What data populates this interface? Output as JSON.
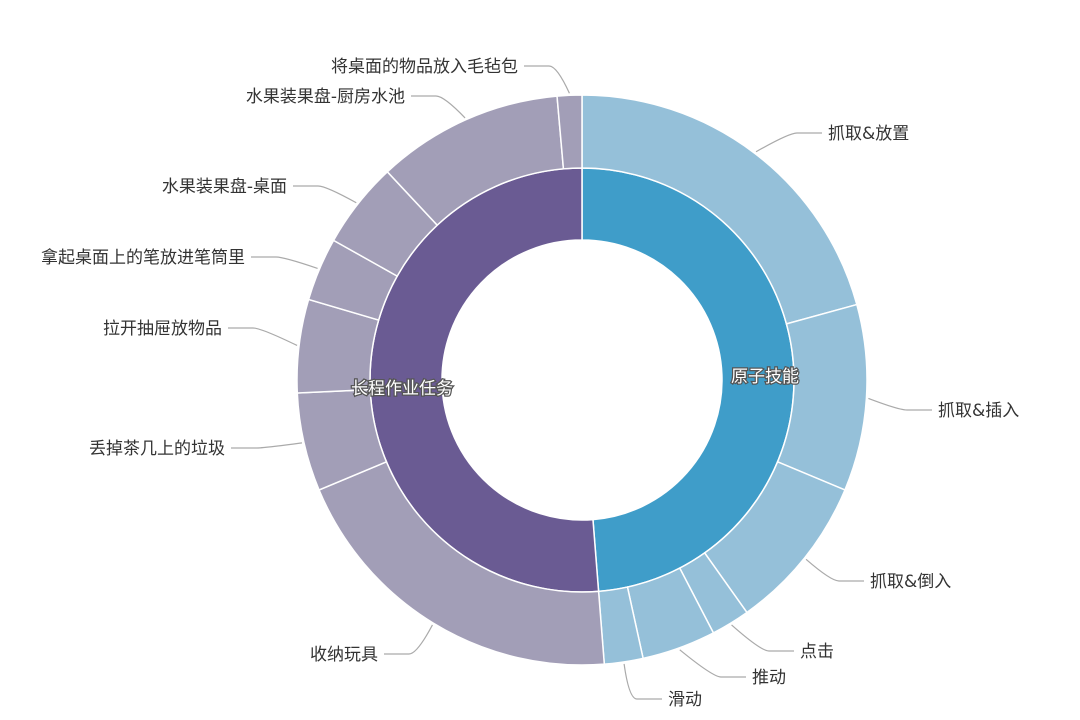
{
  "chart_data": {
    "type": "sunburst",
    "unit": "percent (estimated)",
    "colors": {
      "原子技能_inner": "#3f9dc9",
      "原子技能_outer": "#95c0d9",
      "长程作业任务_inner": "#6a5b93",
      "长程作业任务_outer": "#a29eb7",
      "separator": "#ffffff",
      "leader_line": "#aaaaaa"
    },
    "series": [
      {
        "name": "原子技能",
        "children": [
          {
            "name": "抓取&放置",
            "value": 20.8
          },
          {
            "name": "抓取&插入",
            "value": 10.6
          },
          {
            "name": "抓取&倒入",
            "value": 8.9
          },
          {
            "name": "点击",
            "value": 2.2
          },
          {
            "name": "推动",
            "value": 4.2
          },
          {
            "name": "滑动",
            "value": 2.2
          }
        ]
      },
      {
        "name": "长程作业任务",
        "children": [
          {
            "name": "收纳玩具",
            "value": 20.0
          },
          {
            "name": "丢掉茶几上的垃圾",
            "value": 5.6
          },
          {
            "name": "拉开抽屉放物品",
            "value": 5.3
          },
          {
            "name": "拿起桌面上的笔放进笔筒里",
            "value": 3.6
          },
          {
            "name": "水果装果盘-桌面",
            "value": 4.9
          },
          {
            "name": "水果装果盘-厨房水池",
            "value": 10.6
          },
          {
            "name": "将桌面的物品放入毛毡包",
            "value": 1.4
          }
        ]
      }
    ]
  }
}
